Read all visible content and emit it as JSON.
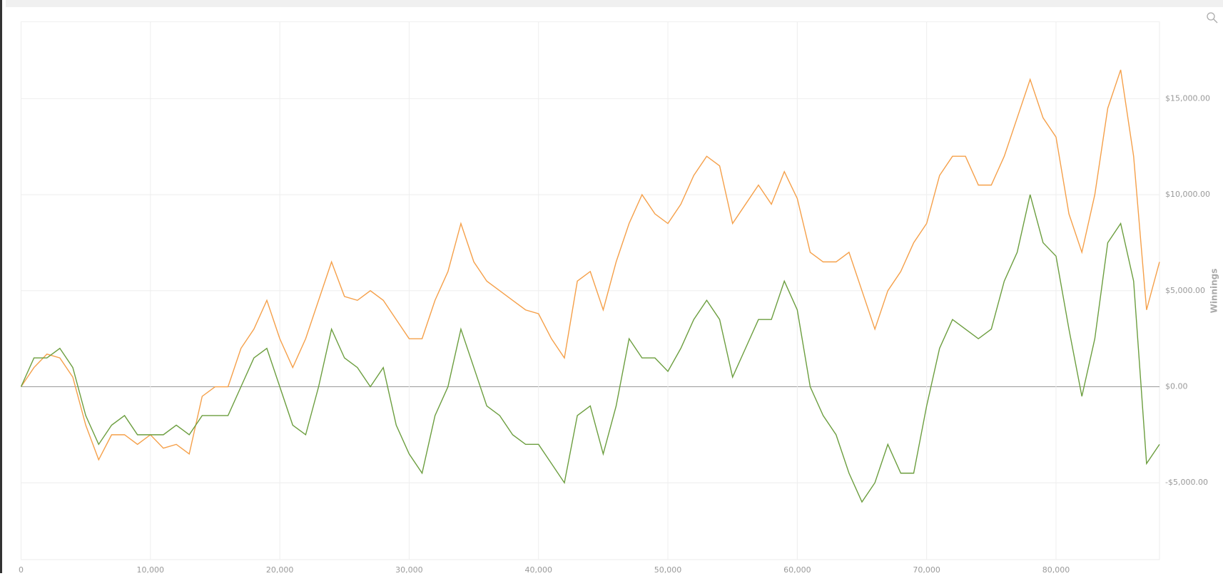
{
  "chart_data": {
    "type": "line",
    "y_axis_label": "Winnings",
    "x": [
      0,
      1000,
      2000,
      3000,
      4000,
      5000,
      6000,
      7000,
      8000,
      9000,
      10000,
      11000,
      12000,
      13000,
      14000,
      15000,
      16000,
      17000,
      18000,
      19000,
      20000,
      21000,
      22000,
      23000,
      24000,
      25000,
      26000,
      27000,
      28000,
      29000,
      30000,
      31000,
      32000,
      33000,
      34000,
      35000,
      36000,
      37000,
      38000,
      39000,
      40000,
      41000,
      42000,
      43000,
      44000,
      45000,
      46000,
      47000,
      48000,
      49000,
      50000,
      51000,
      52000,
      53000,
      54000,
      55000,
      56000,
      57000,
      58000,
      59000,
      60000,
      61000,
      62000,
      63000,
      64000,
      65000,
      66000,
      67000,
      68000,
      69000,
      70000,
      71000,
      72000,
      73000,
      74000,
      75000,
      76000,
      77000,
      78000,
      79000,
      80000,
      81000,
      82000,
      83000,
      84000,
      85000,
      86000,
      87000,
      88000
    ],
    "series": [
      {
        "color": "#f5a04a",
        "values": [
          0,
          1000,
          1700,
          1500,
          500,
          -2000,
          -3800,
          -2500,
          -2500,
          -3000,
          -2500,
          -3200,
          -3000,
          -3500,
          -500,
          0,
          0,
          2000,
          3000,
          4500,
          2500,
          1000,
          2500,
          4500,
          6500,
          4700,
          4500,
          5000,
          4500,
          3500,
          2500,
          2500,
          4500,
          6000,
          8500,
          6500,
          5500,
          5000,
          4500,
          4000,
          3800,
          2500,
          1500,
          5500,
          6000,
          4000,
          6500,
          8500,
          10000,
          9000,
          8500,
          9500,
          11000,
          12000,
          11500,
          8500,
          9500,
          10500,
          9500,
          11200,
          9800,
          7000,
          6500,
          6500,
          7000,
          5000,
          3000,
          5000,
          6000,
          7500,
          8500,
          11000,
          12000,
          12000,
          10500,
          10500,
          12000,
          14000,
          16000,
          14000,
          13000,
          9000,
          7000,
          10000,
          14500,
          16500,
          12000,
          4000,
          6500
        ]
      },
      {
        "color": "#6c9e3f",
        "values": [
          0,
          1500,
          1500,
          2000,
          1000,
          -1500,
          -3000,
          -2000,
          -1500,
          -2500,
          -2500,
          -2500,
          -2000,
          -2500,
          -1500,
          -1500,
          -1500,
          0,
          1500,
          2000,
          0,
          -2000,
          -2500,
          0,
          3000,
          1500,
          1000,
          0,
          1000,
          -2000,
          -3500,
          -4500,
          -1500,
          0,
          3000,
          1000,
          -1000,
          -1500,
          -2500,
          -3000,
          -3000,
          -4000,
          -5000,
          -1500,
          -1000,
          -3500,
          -1000,
          2500,
          1500,
          1500,
          800,
          2000,
          3500,
          4500,
          3500,
          500,
          2000,
          3500,
          3500,
          5500,
          4000,
          0,
          -1500,
          -2500,
          -4500,
          -6000,
          -5000,
          -3000,
          -4500,
          -4500,
          -1000,
          2000,
          3500,
          3000,
          2500,
          3000,
          5500,
          7000,
          10000,
          7500,
          6800,
          3000,
          -500,
          2500,
          7500,
          8500,
          5500,
          -4000,
          -3000
        ]
      }
    ],
    "xlim": [
      0,
      88000
    ],
    "ylim": [
      -9000,
      19000
    ],
    "xticks": [
      0,
      {
        "value": 10000,
        "label": "10,000"
      },
      {
        "value": 20000,
        "label": "20,000"
      },
      {
        "value": 30000,
        "label": "30,000"
      },
      {
        "value": 40000,
        "label": "40,000"
      },
      {
        "value": 50000,
        "label": "50,000"
      },
      {
        "value": 60000,
        "label": "60,000"
      },
      {
        "value": 70000,
        "label": "70,000"
      },
      {
        "value": 80000,
        "label": "80,000"
      }
    ],
    "yticks": [
      {
        "value": -5000,
        "label": "-$5,000.00"
      },
      {
        "value": 0,
        "label": "$0.00"
      },
      {
        "value": 5000,
        "label": "$5,000.00"
      },
      {
        "value": 10000,
        "label": "$10,000.00"
      },
      {
        "value": 15000,
        "label": "$15,000.00"
      }
    ],
    "grid": true
  }
}
